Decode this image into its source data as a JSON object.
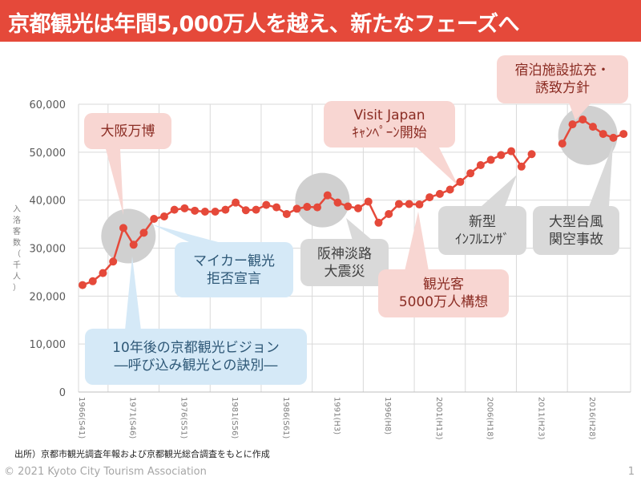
{
  "header": {
    "title": "京都観光は年間5,000万人を越え、新たなフェーズへ"
  },
  "colors": {
    "accent": "#e5493a",
    "line": "#e5493a",
    "pink_callout": "#f8d6d2",
    "blue_callout": "#d5e9f7",
    "gray_callout": "#d9d9d9",
    "highlight_circle": "#d0d0d0"
  },
  "chart_data": {
    "type": "line",
    "title": "",
    "xlabel": "",
    "ylabel": "入洛客数（千人）",
    "ylim": [
      0,
      60000
    ],
    "yticks": [
      "0",
      "10,000",
      "20,000",
      "30,000",
      "40,000",
      "50,000",
      "60,000"
    ],
    "ytick_values": [
      0,
      10000,
      20000,
      30000,
      40000,
      50000,
      60000
    ],
    "grid": true,
    "xlim": [
      1966,
      2019
    ],
    "xtick_years": [
      1966,
      1971,
      1976,
      1981,
      1986,
      1991,
      1996,
      2001,
      2006,
      2011,
      2016
    ],
    "xticks": [
      "1966(S41)",
      "1971(S46)",
      "1976(S51)",
      "1981(S56)",
      "1986(S61)",
      "1991(H3)",
      "1996(H8)",
      "2001(H13)",
      "2006(H18)",
      "2011(H23)",
      "2016(H28)"
    ],
    "series": [
      {
        "name": "入洛客数",
        "x": [
          1966,
          1967,
          1968,
          1969,
          1970,
          1971,
          1972,
          1973,
          1974,
          1975,
          1976,
          1977,
          1978,
          1979,
          1980,
          1981,
          1982,
          1983,
          1984,
          1985,
          1986,
          1987,
          1988,
          1989,
          1990,
          1991,
          1992,
          1993,
          1994,
          1995,
          1996,
          1997,
          1998,
          1999,
          2000,
          2001,
          2002,
          2003,
          2004,
          2005,
          2006,
          2007,
          2008,
          2009,
          2010,
          2013,
          2014,
          2015,
          2016,
          2017,
          2018,
          2019
        ],
        "values": [
          22300,
          23100,
          24800,
          27200,
          34200,
          30700,
          33200,
          36100,
          36600,
          38000,
          38300,
          37800,
          37600,
          37600,
          38000,
          39500,
          37900,
          38000,
          39000,
          38500,
          37100,
          38200,
          38600,
          38500,
          41000,
          39500,
          38700,
          38300,
          39700,
          35300,
          37100,
          39200,
          39200,
          39100,
          40600,
          41300,
          42200,
          43800,
          45600,
          47300,
          48400,
          49400,
          50200,
          47000,
          49600,
          51800,
          55800,
          56800,
          55300,
          53800,
          53000,
          53800
        ]
      }
    ],
    "annotations": [
      {
        "id": "expo",
        "text": "大阪万博",
        "style": "pink",
        "target_year": 1970
      },
      {
        "id": "vision",
        "text": "10年後の京都観光ビジョン\n―呼び込み観光との訣別―",
        "style": "blue",
        "target_year": 1970
      },
      {
        "id": "mycar",
        "text": "マイカー観光\n拒否宣言",
        "style": "blue",
        "target_year": 1973
      },
      {
        "id": "earthquake",
        "text": "阪神淡路\n大震災",
        "style": "gray",
        "target_year": 1990
      },
      {
        "id": "visitjapan",
        "text": "Visit Japan\nｷｬﾝﾍﾟｰﾝ開始",
        "style": "pink",
        "target_year": 2003
      },
      {
        "id": "plan50m",
        "text": "観光客\n5000万人構想",
        "style": "pink",
        "target_year": 2000
      },
      {
        "id": "flu",
        "text": "新型\nｲﾝﾌﾙｴﾝｻﾞ",
        "style": "gray",
        "target_year": 2009
      },
      {
        "id": "lodging",
        "text": "宿泊施設拡充・\n誘致方針",
        "style": "pink",
        "target_year": 2015
      },
      {
        "id": "typhoon",
        "text": "大型台風\n関空事故",
        "style": "gray",
        "target_year": 2018
      }
    ]
  },
  "footer": {
    "source": "出所）京都市観光調査年報および京都観光総合調査をもとに作成",
    "copyright": "© 2021 Kyoto City Tourism Association",
    "page_number": "1"
  }
}
